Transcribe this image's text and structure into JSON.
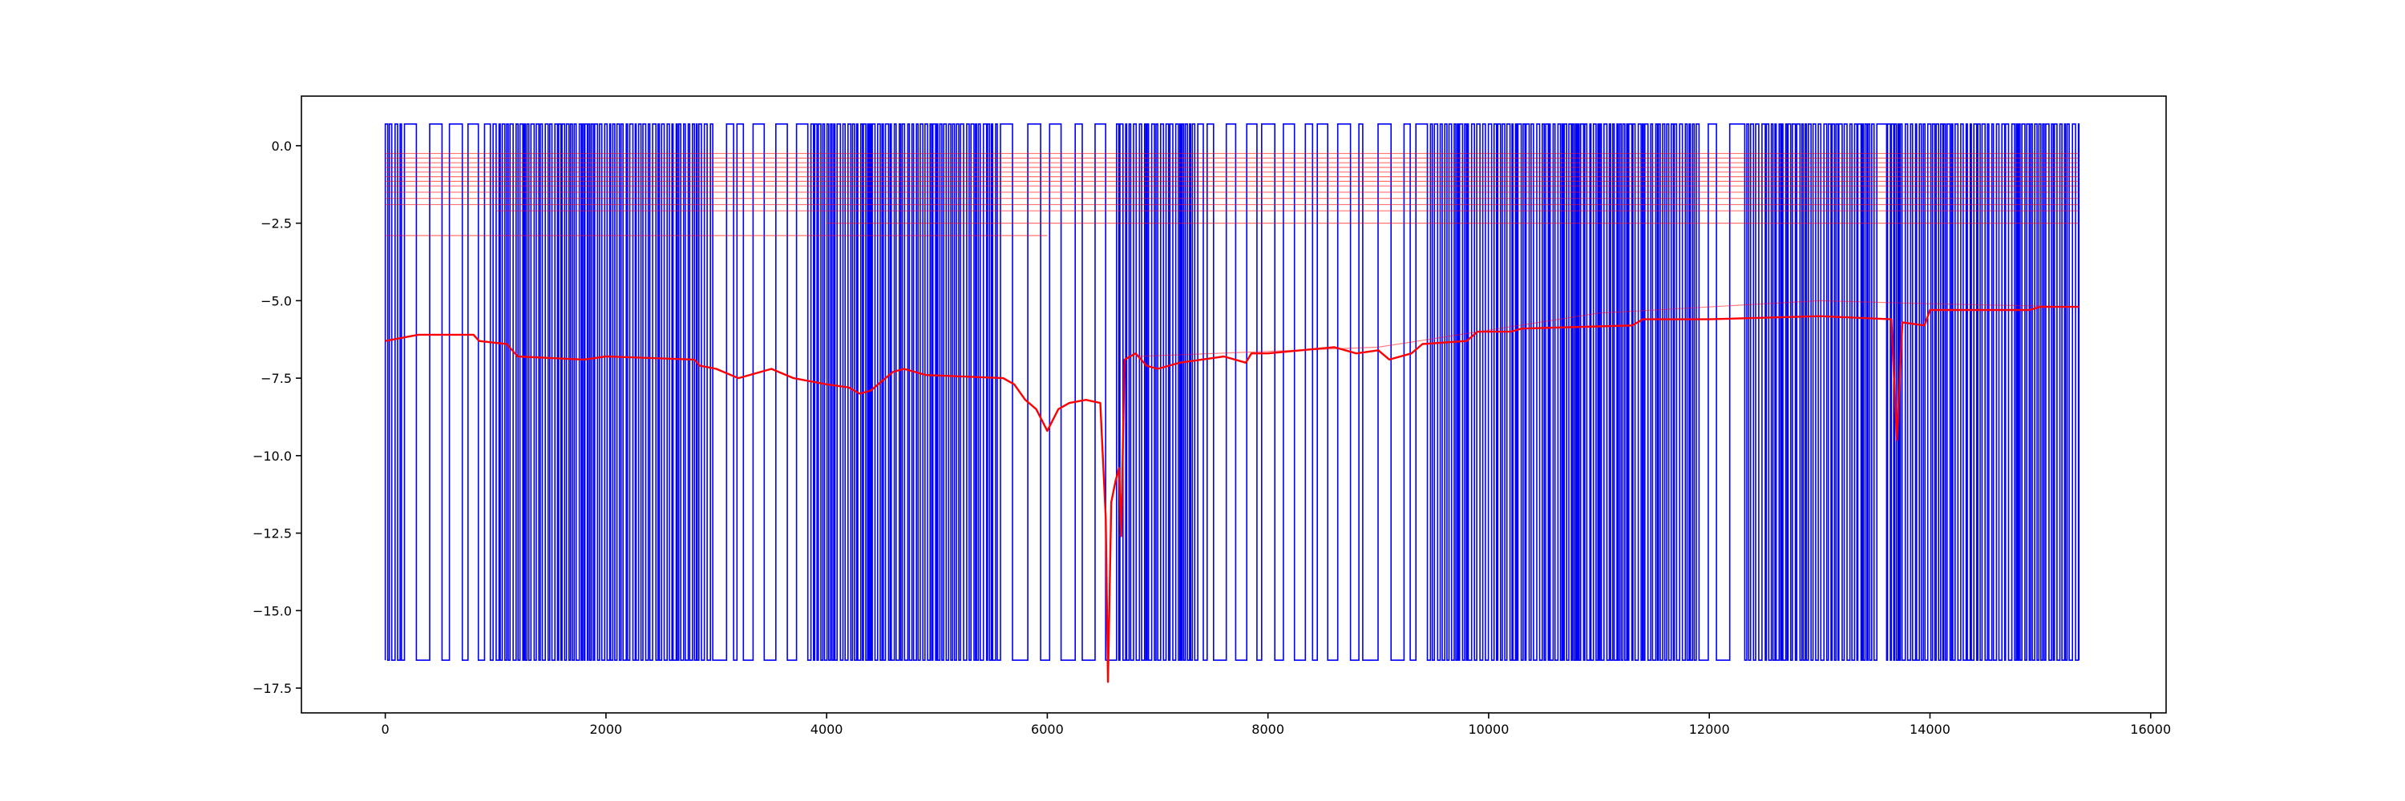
{
  "chart_data": {
    "type": "line",
    "title": "",
    "xlabel": "",
    "ylabel": "",
    "xlim": [
      -760,
      16140
    ],
    "ylim": [
      -18.3,
      1.6
    ],
    "grid": false,
    "legend": "none",
    "x_ticks": [
      {
        "value": 0,
        "label": "0"
      },
      {
        "value": 2000,
        "label": "2000"
      },
      {
        "value": 4000,
        "label": "4000"
      },
      {
        "value": 6000,
        "label": "6000"
      },
      {
        "value": 8000,
        "label": "8000"
      },
      {
        "value": 10000,
        "label": "10000"
      },
      {
        "value": 12000,
        "label": "12000"
      },
      {
        "value": 14000,
        "label": "14000"
      },
      {
        "value": 16000,
        "label": "16000"
      }
    ],
    "y_ticks": [
      {
        "value": 0.0,
        "label": "0.0"
      },
      {
        "value": -2.5,
        "label": "−2.5"
      },
      {
        "value": -5.0,
        "label": "−5.0"
      },
      {
        "value": -7.5,
        "label": "−7.5"
      },
      {
        "value": -10.0,
        "label": "−10.0"
      },
      {
        "value": -12.5,
        "label": "−12.5"
      },
      {
        "value": -15.0,
        "label": "−15.0"
      },
      {
        "value": -17.5,
        "label": "−17.5"
      }
    ],
    "series": [
      {
        "color": "#0000ff",
        "style": "binary square-wave switching between 0.7 and -16.6",
        "high": 0.7,
        "low": -16.6,
        "x_range": [
          0,
          15350
        ],
        "dense_switching_regions": [
          [
            0,
            150
          ],
          [
            900,
            2950
          ],
          [
            3800,
            5550
          ],
          [
            6550,
            7350
          ],
          [
            9400,
            11900
          ],
          [
            12300,
            13500
          ],
          [
            13600,
            15350
          ]
        ],
        "sparse_switching_regions": [
          [
            150,
            900
          ],
          [
            2950,
            3800
          ],
          [
            5550,
            6550
          ],
          [
            7350,
            9400
          ],
          [
            11900,
            12300
          ],
          [
            13500,
            13600
          ]
        ]
      },
      {
        "color": "#ff0000",
        "style": "main trace",
        "points": [
          [
            0,
            -6.3
          ],
          [
            150,
            -6.2
          ],
          [
            300,
            -6.1
          ],
          [
            800,
            -6.1
          ],
          [
            850,
            -6.3
          ],
          [
            1100,
            -6.4
          ],
          [
            1200,
            -6.8
          ],
          [
            1800,
            -6.9
          ],
          [
            2000,
            -6.8
          ],
          [
            2800,
            -6.9
          ],
          [
            2850,
            -7.1
          ],
          [
            3000,
            -7.2
          ],
          [
            3200,
            -7.5
          ],
          [
            3400,
            -7.3
          ],
          [
            3500,
            -7.2
          ],
          [
            3700,
            -7.5
          ],
          [
            4000,
            -7.7
          ],
          [
            4200,
            -7.8
          ],
          [
            4300,
            -8.0
          ],
          [
            4400,
            -7.9
          ],
          [
            4600,
            -7.3
          ],
          [
            4700,
            -7.2
          ],
          [
            4900,
            -7.4
          ],
          [
            5600,
            -7.5
          ],
          [
            5700,
            -7.7
          ],
          [
            5800,
            -8.2
          ],
          [
            5900,
            -8.5
          ],
          [
            6000,
            -9.2
          ],
          [
            6100,
            -8.5
          ],
          [
            6200,
            -8.3
          ],
          [
            6350,
            -8.2
          ],
          [
            6480,
            -8.3
          ],
          [
            6530,
            -12.0
          ],
          [
            6550,
            -17.3
          ],
          [
            6580,
            -11.5
          ],
          [
            6620,
            -10.8
          ],
          [
            6650,
            -10.4
          ],
          [
            6670,
            -12.6
          ],
          [
            6700,
            -6.9
          ],
          [
            6800,
            -6.7
          ],
          [
            6900,
            -7.1
          ],
          [
            7000,
            -7.2
          ],
          [
            7200,
            -7.0
          ],
          [
            7400,
            -6.9
          ],
          [
            7600,
            -6.8
          ],
          [
            7800,
            -7.0
          ],
          [
            7850,
            -6.7
          ],
          [
            8000,
            -6.7
          ],
          [
            8600,
            -6.5
          ],
          [
            8800,
            -6.7
          ],
          [
            9000,
            -6.6
          ],
          [
            9100,
            -6.9
          ],
          [
            9300,
            -6.7
          ],
          [
            9400,
            -6.4
          ],
          [
            9800,
            -6.3
          ],
          [
            9900,
            -6.0
          ],
          [
            10200,
            -6.0
          ],
          [
            10300,
            -5.9
          ],
          [
            11300,
            -5.8
          ],
          [
            11400,
            -5.6
          ],
          [
            12000,
            -5.6
          ],
          [
            13000,
            -5.5
          ],
          [
            13650,
            -5.6
          ],
          [
            13700,
            -9.5
          ],
          [
            13750,
            -5.7
          ],
          [
            13950,
            -5.8
          ],
          [
            14000,
            -5.3
          ],
          [
            14700,
            -5.3
          ],
          [
            14900,
            -5.3
          ],
          [
            15000,
            -5.2
          ],
          [
            15350,
            -5.2
          ]
        ]
      },
      {
        "color": "#ff0000",
        "style": "faint diverging trace",
        "points": [
          [
            6800,
            -6.8
          ],
          [
            9000,
            -6.5
          ],
          [
            11000,
            -5.4
          ],
          [
            13000,
            -5.0
          ],
          [
            14000,
            -5.1
          ],
          [
            15350,
            -5.2
          ]
        ]
      },
      {
        "color": "#ff0000",
        "style": "thin horizontal traces near top",
        "levels": [
          {
            "value": -0.25,
            "x_range": [
              0,
              15350
            ]
          },
          {
            "value": -0.4,
            "x_range": [
              0,
              15350
            ]
          },
          {
            "value": -0.55,
            "x_range": [
              0,
              15350
            ]
          },
          {
            "value": -0.7,
            "x_range": [
              0,
              15350
            ]
          },
          {
            "value": -0.85,
            "x_range": [
              0,
              15350
            ]
          },
          {
            "value": -1.0,
            "x_range": [
              0,
              15350
            ]
          },
          {
            "value": -1.15,
            "x_range": [
              0,
              15350
            ]
          },
          {
            "value": -1.3,
            "x_range": [
              0,
              15350
            ]
          },
          {
            "value": -1.5,
            "x_range": [
              0,
              15350
            ]
          },
          {
            "value": -1.7,
            "x_range": [
              0,
              15350
            ]
          },
          {
            "value": -1.9,
            "x_range": [
              0,
              15350
            ]
          },
          {
            "value": -2.1,
            "x_range": [
              1000,
              15350
            ]
          },
          {
            "value": -2.5,
            "x_range": [
              4000,
              15350
            ]
          },
          {
            "value": -2.9,
            "x_range": [
              0,
              6000
            ]
          }
        ]
      }
    ]
  }
}
